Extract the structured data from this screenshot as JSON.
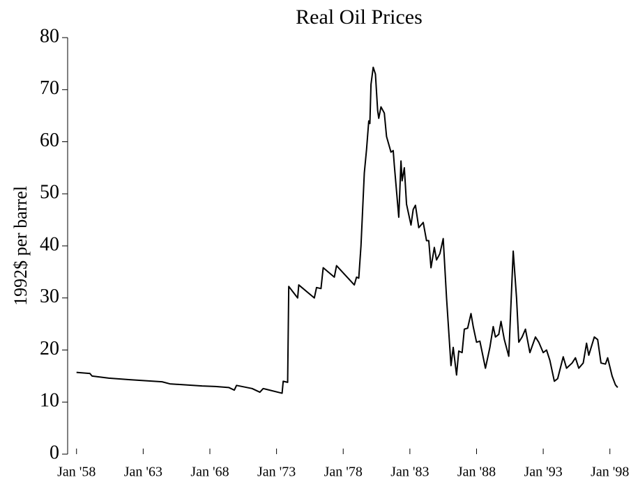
{
  "chart_data": {
    "type": "line",
    "title": "Real Oil Prices",
    "y_label": "1992$ per barrel",
    "x": [
      "1958-01",
      "1959-01",
      "1959-03",
      "1960-06",
      "1962-01",
      "1964-06",
      "1965-01",
      "1967-06",
      "1968-06",
      "1969-06",
      "1969-11",
      "1970-01",
      "1971-03",
      "1971-10",
      "1972-01",
      "1973-06",
      "1973-07",
      "1973-11",
      "1973-12",
      "1974-08",
      "1974-09",
      "1975-11",
      "1976-01",
      "1976-05",
      "1976-07",
      "1977-05",
      "1977-07",
      "1978-11",
      "1979-01",
      "1979-03",
      "1979-05",
      "1979-08",
      "1979-10",
      "1979-12",
      "1980-01",
      "1980-02",
      "1980-04",
      "1980-06",
      "1980-08",
      "1980-09",
      "1980-11",
      "1981-02",
      "1981-04",
      "1981-08",
      "1981-10",
      "1981-11",
      "1982-03",
      "1982-05",
      "1982-06",
      "1982-08",
      "1982-10",
      "1983-02",
      "1983-04",
      "1983-06",
      "1983-09",
      "1984-01",
      "1984-04",
      "1984-06",
      "1984-08",
      "1984-11",
      "1985-01",
      "1985-04",
      "1985-07",
      "1985-10",
      "1986-02",
      "1986-04",
      "1986-07",
      "1986-09",
      "1986-12",
      "1987-02",
      "1987-05",
      "1987-08",
      "1987-10",
      "1988-01",
      "1988-04",
      "1988-09",
      "1989-01",
      "1989-04",
      "1989-06",
      "1989-09",
      "1989-11",
      "1990-02",
      "1990-06",
      "1990-10",
      "1991-01",
      "1991-03",
      "1991-06",
      "1991-09",
      "1992-01",
      "1992-06",
      "1992-09",
      "1993-01",
      "1993-04",
      "1993-07",
      "1993-11",
      "1994-02",
      "1994-07",
      "1994-10",
      "1995-03",
      "1995-06",
      "1995-09",
      "1996-01",
      "1996-04",
      "1996-06",
      "1996-11",
      "1997-02",
      "1997-05",
      "1997-09",
      "1997-11",
      "1998-03",
      "1998-06",
      "1998-08"
    ],
    "values": [
      15.7,
      15.5,
      15.0,
      14.6,
      14.3,
      13.9,
      13.5,
      13.1,
      13.0,
      12.8,
      12.3,
      13.2,
      12.6,
      11.9,
      12.6,
      11.7,
      14.0,
      13.8,
      32.2,
      30.0,
      32.5,
      30.0,
      32.0,
      31.8,
      35.8,
      34.0,
      36.2,
      32.5,
      34.0,
      33.8,
      40.0,
      54.0,
      58.5,
      64.0,
      63.5,
      71.0,
      74.3,
      73.0,
      66.0,
      64.5,
      66.7,
      65.5,
      61.0,
      58.0,
      58.3,
      55.5,
      45.5,
      56.3,
      52.5,
      55.0,
      48.0,
      44.0,
      47.0,
      47.8,
      43.5,
      44.5,
      41.0,
      41.0,
      35.8,
      39.7,
      37.3,
      38.5,
      41.4,
      30.0,
      17.0,
      20.5,
      15.2,
      19.8,
      19.5,
      24.0,
      24.2,
      27.0,
      24.5,
      21.5,
      21.7,
      16.5,
      20.5,
      24.5,
      22.5,
      23.0,
      25.5,
      22.0,
      18.8,
      39.0,
      30.0,
      21.5,
      22.5,
      24.0,
      19.5,
      22.5,
      21.5,
      19.5,
      20.0,
      18.0,
      14.0,
      14.5,
      18.7,
      16.5,
      17.5,
      18.5,
      16.5,
      17.5,
      21.3,
      19.0,
      22.5,
      22.0,
      17.5,
      17.3,
      18.5,
      15.0,
      13.3,
      12.8
    ],
    "color": "#000000",
    "xlim": [
      "1957-05",
      "1999-08"
    ],
    "xticks": [
      {
        "value": "1958-01",
        "label": "Jan '58"
      },
      {
        "value": "1963-01",
        "label": "Jan '63"
      },
      {
        "value": "1968-01",
        "label": "Jan '68"
      },
      {
        "value": "1973-01",
        "label": "Jan '73"
      },
      {
        "value": "1978-01",
        "label": "Jan '78"
      },
      {
        "value": "1983-01",
        "label": "Jan '83"
      },
      {
        "value": "1988-01",
        "label": "Jan '88"
      },
      {
        "value": "1993-01",
        "label": "Jan '93"
      },
      {
        "value": "1998-01",
        "label": "Jan '98"
      }
    ],
    "ylim": [
      0,
      80
    ],
    "yticks": [
      0,
      10,
      20,
      30,
      40,
      50,
      60,
      70,
      80
    ],
    "grid": false
  }
}
